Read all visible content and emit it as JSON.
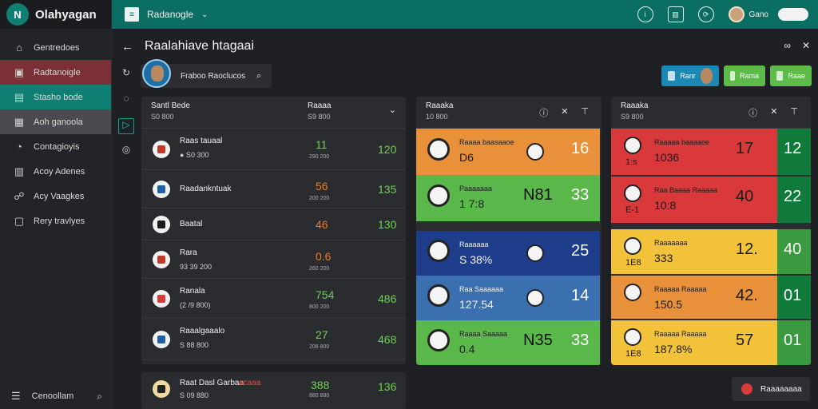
{
  "app": {
    "name": "Olahyagan",
    "logo_text": "N"
  },
  "sidebar": {
    "items": [
      {
        "label": "Gentredoes",
        "icon": "home-icon",
        "glyph": "⌂",
        "state": ""
      },
      {
        "label": "Radtanoigle",
        "icon": "image-icon",
        "glyph": "▣",
        "state": "red"
      },
      {
        "label": "Stasho bode",
        "icon": "chart-icon",
        "glyph": "▤",
        "state": "teal"
      },
      {
        "label": "Aoh ganoola",
        "icon": "table-icon",
        "glyph": "▦",
        "state": "grey"
      },
      {
        "label": "Contagioyis",
        "icon": "shield-icon",
        "glyph": "◔",
        "state": ""
      },
      {
        "label": "Acoy Adenes",
        "icon": "bar-icon",
        "glyph": "▥",
        "state": ""
      },
      {
        "label": "Acy Vaagkes",
        "icon": "people-icon",
        "glyph": "☍",
        "state": ""
      },
      {
        "label": "Rery travlyes",
        "icon": "doc-icon",
        "glyph": "▢",
        "state": ""
      }
    ],
    "footer": {
      "label": "Cenoollam",
      "menu_icon": "menu-icon",
      "search_icon": "search-icon"
    }
  },
  "topbar": {
    "breadcrumb": "Radanogle",
    "user_name": "Gano",
    "pill": ""
  },
  "header": {
    "title": "Raalahiave htagaai"
  },
  "profile": {
    "name": "Fraboo Raoclucos"
  },
  "actions": [
    {
      "label": "Ranr",
      "color": "blue"
    },
    {
      "label": "Rama",
      "color": "green"
    },
    {
      "label": "Raae",
      "color": "green"
    }
  ],
  "left_panel": {
    "title": "Santl Bede",
    "subtitle": "S0 800",
    "col_title": "Raaaa",
    "col_sub": "S9 800",
    "rows": [
      {
        "name": "Raas tauaal",
        "sub": "● S0 300",
        "v1": "11",
        "v1_sub": "290 200",
        "v1_color": "#6fd052",
        "v2": "120",
        "crest": "#c0392b"
      },
      {
        "name": "Raadankntuak",
        "sub": "",
        "v1": "56",
        "v1_sub": "200 200",
        "v1_color": "#e87a2e",
        "v2": "135",
        "crest": "#1f5fa8"
      },
      {
        "name": "Baatal",
        "sub": "",
        "v1": "46",
        "v1_sub": "",
        "v1_color": "#e87a2e",
        "v2": "130",
        "crest": "#1c1c1c"
      },
      {
        "name": "Rara",
        "sub": "93 39 200",
        "v1": "0.6",
        "v1_sub": "260 200",
        "v1_color": "#e87a2e",
        "v2": "",
        "crest": "#c0392b"
      },
      {
        "name": "Ranala",
        "sub": "(2 /9 800)",
        "v1": "754",
        "v1_sub": "800 200",
        "v1_color": "#6fd052",
        "v2": "486",
        "crest": "#d93a3a"
      },
      {
        "name": "Raaalgaaalo",
        "sub": "S 88 800",
        "v1": "27",
        "v1_sub": "208 800",
        "v1_color": "#6fd052",
        "v2": "468",
        "crest": "#1f5fa8"
      }
    ],
    "footer_row": {
      "name": "Raat Dasl Garbaa",
      "tag": "acaaa",
      "sub": "S 09 880",
      "v1": "388",
      "v1_sub": "880 880",
      "v2": "136"
    }
  },
  "mid_panel": {
    "title": "Raaaka",
    "subtitle": "10 800",
    "tiles": [
      {
        "name": "Raaaa baasaaoe",
        "sub": "D6",
        "v1": "",
        "v2": "16",
        "bg": "#e8913a",
        "v2_color": "#ffffff"
      },
      {
        "name": "Paaaaaaa",
        "sub": "1 7:8",
        "v1": "N81",
        "v2": "33",
        "bg": "#5ab84a",
        "v2_color": "#ffffff"
      },
      {
        "name": "Raaaaaa",
        "sub": "S 38%",
        "v1": "",
        "v2": "25",
        "bg": "#1e3d8a",
        "v2_color": "#ffffff"
      },
      {
        "name": "Raa Saaaaaa",
        "sub": "127.54",
        "v1": "",
        "v2": "14",
        "bg": "#3a6fb0",
        "v2_color": "#ffffff"
      },
      {
        "name": "Raaaa Saaaaa",
        "sub": "0.4",
        "v1": "N35",
        "v2": "33",
        "bg": "#5ab84a",
        "v2_color": "#ffffff"
      }
    ]
  },
  "right_panel": {
    "title": "Raaaka",
    "subtitle": "S9 800",
    "tiles": [
      {
        "name": "Raaaaa baaaaoe",
        "tag": "1:s",
        "sub": "1036",
        "v1": "17",
        "v2": "12",
        "bg": "#d9393b",
        "v2bg": "#0f7a3a"
      },
      {
        "name": "Raa Baaaa Raaaaa",
        "tag": "E-1",
        "sub": "10:8",
        "v1": "40",
        "v2": "22",
        "bg": "#d9393b",
        "v2bg": "#0f7a3a"
      },
      {
        "name": "Raaaaaaa",
        "tag": "1E8",
        "sub": "333",
        "v1": "12.",
        "v2": "40",
        "bg": "#f2c23a",
        "v2bg": "#3a9a40"
      },
      {
        "name": "Raaaaa Raaaaa",
        "tag": "",
        "sub": "150.5",
        "v1": "42.",
        "v2": "01",
        "bg": "#e8913a",
        "v2bg": "#0f7a3a"
      },
      {
        "name": "Raaaaa Raaaaa",
        "tag": "1E8",
        "sub": "187.8%",
        "v1": "57",
        "v2": "01",
        "bg": "#f2c23a",
        "v2bg": "#3a9a40"
      }
    ]
  },
  "cta": {
    "label": "Raaaaaaaa"
  }
}
